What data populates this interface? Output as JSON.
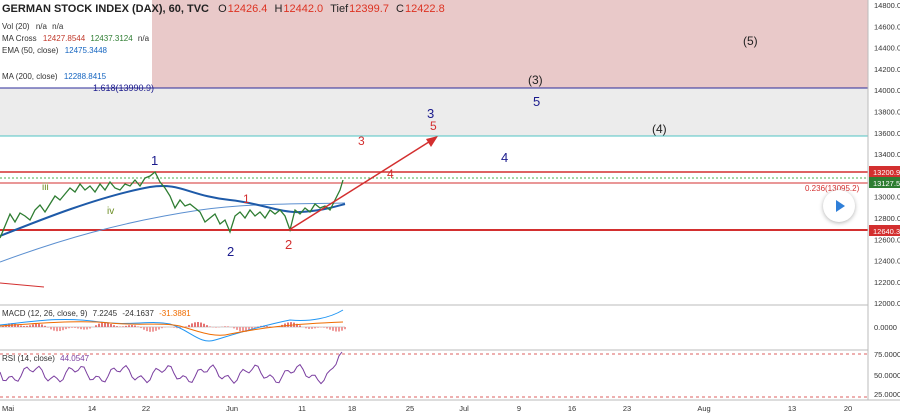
{
  "header": {
    "title": "GERMAN STOCK INDEX (DAX), 60, TVC",
    "ohlc": [
      {
        "k": "O",
        "v": "12426.4"
      },
      {
        "k": "H",
        "v": "12442.0"
      },
      {
        "k": "Tief",
        "v": "12399.7"
      },
      {
        "k": "C",
        "v": "12422.8"
      }
    ]
  },
  "indicators": [
    {
      "name": "Vol (20)",
      "vals": [
        "n/a",
        "n/a"
      ]
    },
    {
      "name": "MA Cross",
      "vals": [
        "12427.8544",
        "12437.3124",
        "n/a"
      ]
    },
    {
      "name": "EMA (50, close)",
      "vals": [
        "12475.3448"
      ]
    },
    {
      "name": "MA (200, close)",
      "vals": [
        "12288.8415"
      ]
    }
  ],
  "fib_labels": [
    "1.618(13990.9)",
    "0.236(13095.2)"
  ],
  "wave_labels": {
    "purple": [
      "1",
      "2",
      "3",
      "4",
      "5"
    ],
    "bracket": [
      "(3)",
      "(4)",
      "(5)"
    ],
    "red": [
      "1",
      "2",
      "3",
      "4",
      "5"
    ],
    "green": [
      "iii",
      "iv"
    ]
  },
  "price_axis": {
    "ticks": [
      "14800.0",
      "14600.0",
      "14400.0",
      "14200.0",
      "14000.0",
      "13800.0",
      "13600.0",
      "13400.0",
      "13200.0",
      "13000.0",
      "12800.0",
      "12600.0",
      "12400.0",
      "12200.0",
      "12000.0"
    ],
    "badges": [
      "13200.9",
      "13127.5",
      "12640.3"
    ]
  },
  "macd": {
    "name": "MACD (12, 26, close, 9)",
    "vals": [
      "7.2245",
      "-24.1637",
      "-31.3881"
    ],
    "tick": "0.0000"
  },
  "rsi": {
    "name": "RSI (14, close)",
    "vals": [
      "44.0547"
    ],
    "ticks": [
      "75.0000",
      "50.0000",
      "25.0000"
    ]
  },
  "time_axis": [
    "Mai",
    "14",
    "22",
    "Jun",
    "11",
    "18",
    "25",
    "Jul",
    "9",
    "16",
    "23",
    "Aug",
    "13",
    "20"
  ],
  "colors": {
    "purple": "#1a1a8c",
    "red": "#d32f2f",
    "green": "#6b8e23",
    "zone": "#e8c4c4"
  },
  "chart_data": {
    "type": "line",
    "title": "GERMAN STOCK INDEX (DAX), 60, TVC",
    "xlabel": "",
    "ylabel": "",
    "x": [
      "Mai",
      "14",
      "22",
      "Jun",
      "11",
      "18"
    ],
    "ylim": [
      12000,
      14800
    ],
    "series": [],
    "fib_levels": [
      {
        "label": "1.618",
        "value": 13990.9
      },
      {
        "label": "0.236",
        "value": 13095.2
      }
    ],
    "support": 12640.3,
    "resistance": 13200.9
  }
}
